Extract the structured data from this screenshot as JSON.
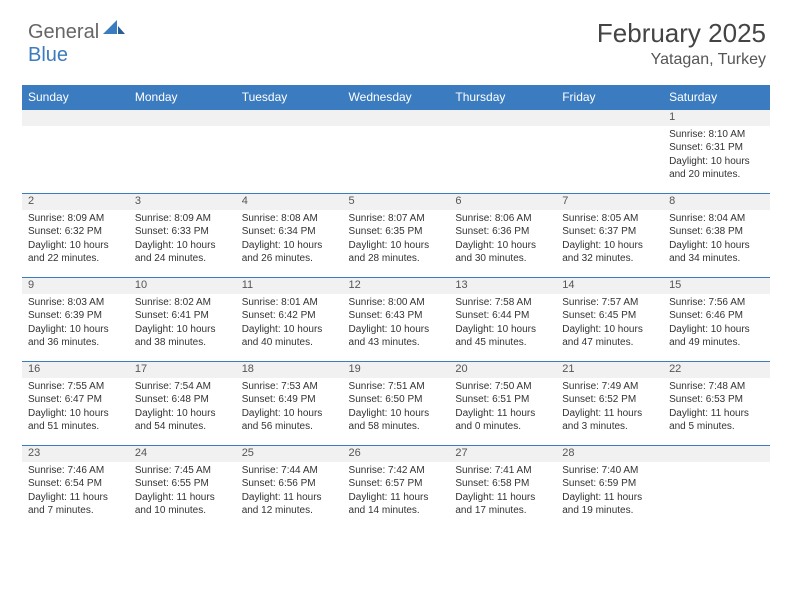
{
  "brand": {
    "part1": "General",
    "part2": "Blue"
  },
  "title": "February 2025",
  "location": "Yatagan, Turkey",
  "colors": {
    "header_bg": "#3b7bbf",
    "header_fg": "#ffffff",
    "daynum_bg": "#f1f1f1",
    "border": "#3b7bbf",
    "text": "#333333",
    "brand_gray": "#666666",
    "brand_blue": "#3b7bbf"
  },
  "day_headers": [
    "Sunday",
    "Monday",
    "Tuesday",
    "Wednesday",
    "Thursday",
    "Friday",
    "Saturday"
  ],
  "weeks": [
    [
      null,
      null,
      null,
      null,
      null,
      null,
      {
        "n": "1",
        "sunrise": "8:10 AM",
        "sunset": "6:31 PM",
        "daylight": "10 hours and 20 minutes."
      }
    ],
    [
      {
        "n": "2",
        "sunrise": "8:09 AM",
        "sunset": "6:32 PM",
        "daylight": "10 hours and 22 minutes."
      },
      {
        "n": "3",
        "sunrise": "8:09 AM",
        "sunset": "6:33 PM",
        "daylight": "10 hours and 24 minutes."
      },
      {
        "n": "4",
        "sunrise": "8:08 AM",
        "sunset": "6:34 PM",
        "daylight": "10 hours and 26 minutes."
      },
      {
        "n": "5",
        "sunrise": "8:07 AM",
        "sunset": "6:35 PM",
        "daylight": "10 hours and 28 minutes."
      },
      {
        "n": "6",
        "sunrise": "8:06 AM",
        "sunset": "6:36 PM",
        "daylight": "10 hours and 30 minutes."
      },
      {
        "n": "7",
        "sunrise": "8:05 AM",
        "sunset": "6:37 PM",
        "daylight": "10 hours and 32 minutes."
      },
      {
        "n": "8",
        "sunrise": "8:04 AM",
        "sunset": "6:38 PM",
        "daylight": "10 hours and 34 minutes."
      }
    ],
    [
      {
        "n": "9",
        "sunrise": "8:03 AM",
        "sunset": "6:39 PM",
        "daylight": "10 hours and 36 minutes."
      },
      {
        "n": "10",
        "sunrise": "8:02 AM",
        "sunset": "6:41 PM",
        "daylight": "10 hours and 38 minutes."
      },
      {
        "n": "11",
        "sunrise": "8:01 AM",
        "sunset": "6:42 PM",
        "daylight": "10 hours and 40 minutes."
      },
      {
        "n": "12",
        "sunrise": "8:00 AM",
        "sunset": "6:43 PM",
        "daylight": "10 hours and 43 minutes."
      },
      {
        "n": "13",
        "sunrise": "7:58 AM",
        "sunset": "6:44 PM",
        "daylight": "10 hours and 45 minutes."
      },
      {
        "n": "14",
        "sunrise": "7:57 AM",
        "sunset": "6:45 PM",
        "daylight": "10 hours and 47 minutes."
      },
      {
        "n": "15",
        "sunrise": "7:56 AM",
        "sunset": "6:46 PM",
        "daylight": "10 hours and 49 minutes."
      }
    ],
    [
      {
        "n": "16",
        "sunrise": "7:55 AM",
        "sunset": "6:47 PM",
        "daylight": "10 hours and 51 minutes."
      },
      {
        "n": "17",
        "sunrise": "7:54 AM",
        "sunset": "6:48 PM",
        "daylight": "10 hours and 54 minutes."
      },
      {
        "n": "18",
        "sunrise": "7:53 AM",
        "sunset": "6:49 PM",
        "daylight": "10 hours and 56 minutes."
      },
      {
        "n": "19",
        "sunrise": "7:51 AM",
        "sunset": "6:50 PM",
        "daylight": "10 hours and 58 minutes."
      },
      {
        "n": "20",
        "sunrise": "7:50 AM",
        "sunset": "6:51 PM",
        "daylight": "11 hours and 0 minutes."
      },
      {
        "n": "21",
        "sunrise": "7:49 AM",
        "sunset": "6:52 PM",
        "daylight": "11 hours and 3 minutes."
      },
      {
        "n": "22",
        "sunrise": "7:48 AM",
        "sunset": "6:53 PM",
        "daylight": "11 hours and 5 minutes."
      }
    ],
    [
      {
        "n": "23",
        "sunrise": "7:46 AM",
        "sunset": "6:54 PM",
        "daylight": "11 hours and 7 minutes."
      },
      {
        "n": "24",
        "sunrise": "7:45 AM",
        "sunset": "6:55 PM",
        "daylight": "11 hours and 10 minutes."
      },
      {
        "n": "25",
        "sunrise": "7:44 AM",
        "sunset": "6:56 PM",
        "daylight": "11 hours and 12 minutes."
      },
      {
        "n": "26",
        "sunrise": "7:42 AM",
        "sunset": "6:57 PM",
        "daylight": "11 hours and 14 minutes."
      },
      {
        "n": "27",
        "sunrise": "7:41 AM",
        "sunset": "6:58 PM",
        "daylight": "11 hours and 17 minutes."
      },
      {
        "n": "28",
        "sunrise": "7:40 AM",
        "sunset": "6:59 PM",
        "daylight": "11 hours and 19 minutes."
      },
      null
    ]
  ],
  "labels": {
    "sunrise": "Sunrise:",
    "sunset": "Sunset:",
    "daylight": "Daylight:"
  }
}
